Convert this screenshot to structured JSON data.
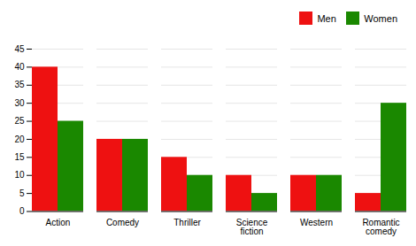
{
  "chart_data": {
    "type": "bar",
    "categories": [
      "Action",
      "Comedy",
      "Thriller",
      "Science\nfiction",
      "Western",
      "Romantic\ncomedy"
    ],
    "series": [
      {
        "name": "Men",
        "color": "#ee1111",
        "values": [
          40,
          20,
          15,
          10,
          10,
          5
        ]
      },
      {
        "name": "Women",
        "color": "#1a8800",
        "values": [
          25,
          20,
          10,
          5,
          10,
          30
        ]
      }
    ],
    "ylim": [
      0,
      45
    ],
    "yticks": [
      0,
      5,
      10,
      15,
      20,
      25,
      30,
      35,
      40,
      45
    ],
    "grid": true,
    "legend": "upper right"
  }
}
